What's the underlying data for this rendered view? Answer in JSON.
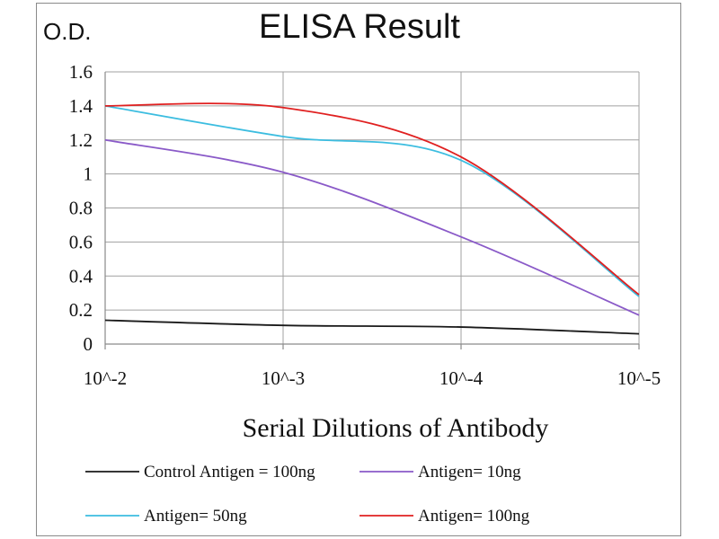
{
  "chart_data": {
    "type": "line",
    "title": "ELISA Result",
    "y_unit_label": "O.D.",
    "xlabel": "Serial Dilutions  of Antibody",
    "ylabel": "",
    "categories": [
      "10^-2",
      "10^-3",
      "10^-4",
      "10^-5"
    ],
    "y_ticks": [
      "0",
      "0.2",
      "0.4",
      "0.6",
      "0.8",
      "1",
      "1.2",
      "1.4",
      "1.6"
    ],
    "ylim": [
      0,
      1.6
    ],
    "grid": true,
    "legend_position": "bottom",
    "series": [
      {
        "name": "Control Antigen = 100ng",
        "color": "#1a1a1a",
        "values": [
          0.14,
          0.11,
          0.1,
          0.06
        ]
      },
      {
        "name": "Antigen= 10ng",
        "color": "#8a5ac8",
        "values": [
          1.2,
          1.01,
          0.63,
          0.17
        ]
      },
      {
        "name": "Antigen= 50ng",
        "color": "#3cbde0",
        "values": [
          1.4,
          1.22,
          1.08,
          0.28
        ]
      },
      {
        "name": "Antigen= 100ng",
        "color": "#e02020",
        "values": [
          1.4,
          1.39,
          1.1,
          0.29
        ]
      }
    ]
  }
}
